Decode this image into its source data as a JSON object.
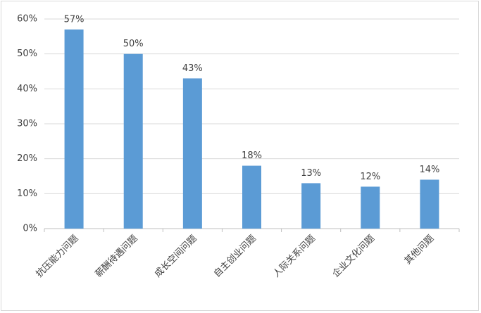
{
  "chart_data": {
    "type": "bar",
    "categories": [
      "抗压能力问题",
      "薪酬待遇问题",
      "成长空间问题",
      "自主创业问题",
      "人际关系问题",
      "企业文化问题",
      "其他问题"
    ],
    "values": [
      57,
      50,
      43,
      18,
      13,
      12,
      14
    ],
    "value_labels": [
      "57%",
      "50%",
      "43%",
      "18%",
      "13%",
      "12%",
      "14%"
    ],
    "color": "#5b9bd5",
    "ylim": [
      0,
      60
    ],
    "yticks": [
      {
        "value": 0,
        "label": "0%"
      },
      {
        "value": 10,
        "label": "10%"
      },
      {
        "value": 20,
        "label": "20%"
      },
      {
        "value": 30,
        "label": "30%"
      },
      {
        "value": 40,
        "label": "40%"
      },
      {
        "value": 50,
        "label": "50%"
      },
      {
        "value": 60,
        "label": "60%"
      }
    ],
    "grid": true
  }
}
